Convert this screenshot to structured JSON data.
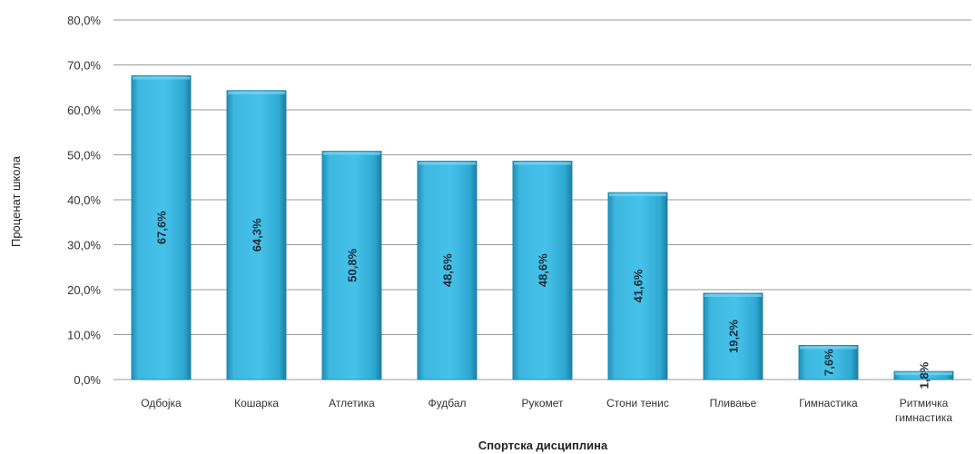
{
  "chart_data": {
    "type": "bar",
    "categories": [
      [
        "Одбојка"
      ],
      [
        "Кошарка"
      ],
      [
        "Атлетика"
      ],
      [
        "Фудбал"
      ],
      [
        "Рукомет"
      ],
      [
        "Стони тенис"
      ],
      [
        "Пливање"
      ],
      [
        "Гимнастика"
      ],
      [
        "Ритмичка",
        "гимнастика"
      ]
    ],
    "values": [
      67.6,
      64.3,
      50.8,
      48.6,
      48.6,
      41.6,
      19.2,
      7.6,
      1.8
    ],
    "data_labels": [
      "67,6%",
      "64,3%",
      "50,8%",
      "48,6%",
      "48,6%",
      "41,6%",
      "19,2%",
      "7,6%",
      "1,8%"
    ],
    "ylim": [
      0,
      80
    ],
    "yticks": [
      0,
      10,
      20,
      30,
      40,
      50,
      60,
      70,
      80
    ],
    "ytick_labels": [
      "0,0%",
      "10,0%",
      "20,0%",
      "30,0%",
      "40,0%",
      "50,0%",
      "60,0%",
      "70,0%",
      "80,0%"
    ],
    "xlabel": "Спортска дисциплина",
    "ylabel": "Проценат школа",
    "grid": true,
    "bar_color": "#3db7df"
  }
}
